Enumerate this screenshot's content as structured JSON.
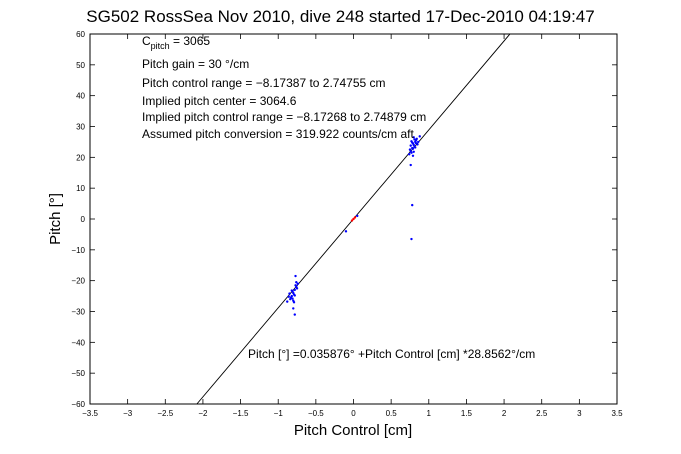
{
  "chart_data": {
    "type": "scatter",
    "title": "SG502 RossSea Nov 2010, dive 248 started 17-Dec-2010 04:19:47",
    "xlabel": "Pitch Control [cm]",
    "ylabel": "Pitch [°]",
    "xlim": [
      -3.5,
      3.5
    ],
    "ylim": [
      -60,
      60
    ],
    "xticks": [
      -3.5,
      -3,
      -2.5,
      -2,
      -1.5,
      -1,
      -0.5,
      0,
      0.5,
      1,
      1.5,
      2,
      2.5,
      3,
      3.5
    ],
    "yticks": [
      -60,
      -50,
      -40,
      -30,
      -20,
      -10,
      0,
      10,
      20,
      30,
      40,
      50,
      60
    ],
    "grid": false,
    "annotations": {
      "c_pitch_main": "C",
      "c_pitch_sub": "pitch",
      "c_pitch_value": " = 3065",
      "gain": "Pitch gain = 30 °/cm",
      "control_range": "Pitch control range = −8.17387 to 2.74755 cm",
      "implied_center": "Implied pitch center = 3064.6",
      "implied_range": "Implied pitch control range = −8.17268 to 2.74879 cm",
      "conversion": "Assumed pitch conversion = 319.922 counts/cm aft",
      "fit": "Pitch [°] =0.035876° +Pitch Control [cm] *28.8562°/cm"
    },
    "fit_line": {
      "intercept": 0.035876,
      "slope": 28.8562,
      "color": "#000000"
    },
    "series": [
      {
        "color": "#0000ff",
        "points": [
          [
            0.8,
            24.0
          ],
          [
            0.78,
            23.0
          ],
          [
            0.82,
            25.0
          ],
          [
            0.76,
            22.0
          ],
          [
            0.84,
            26.0
          ],
          [
            0.79,
            24.5
          ],
          [
            0.81,
            23.5
          ],
          [
            0.77,
            21.5
          ],
          [
            0.83,
            25.5
          ],
          [
            0.75,
            22.5
          ],
          [
            0.8,
            26.5
          ],
          [
            0.86,
            25.0
          ],
          [
            0.78,
            24.8
          ],
          [
            0.82,
            23.2
          ],
          [
            0.79,
            22.8
          ],
          [
            0.85,
            24.2
          ],
          [
            0.76,
            23.8
          ],
          [
            0.81,
            25.8
          ],
          [
            0.74,
            21.0
          ],
          [
            0.88,
            26.8
          ],
          [
            0.8,
            21.8
          ],
          [
            0.83,
            24.6
          ],
          [
            0.77,
            25.2
          ],
          [
            0.79,
            20.5
          ],
          [
            0.76,
            17.5
          ],
          [
            0.78,
            4.5
          ],
          [
            0.77,
            -6.5
          ],
          [
            -0.8,
            -24.0
          ],
          [
            -0.78,
            -23.0
          ],
          [
            -0.82,
            -25.0
          ],
          [
            -0.76,
            -22.0
          ],
          [
            -0.84,
            -26.0
          ],
          [
            -0.79,
            -24.5
          ],
          [
            -0.81,
            -23.5
          ],
          [
            -0.77,
            -21.5
          ],
          [
            -0.83,
            -25.5
          ],
          [
            -0.75,
            -22.5
          ],
          [
            -0.8,
            -26.5
          ],
          [
            -0.86,
            -25.2
          ],
          [
            -0.78,
            -24.8
          ],
          [
            -0.82,
            -23.2
          ],
          [
            -0.79,
            -27.0
          ],
          [
            -0.85,
            -24.2
          ],
          [
            -0.76,
            -20.5
          ],
          [
            -0.81,
            -25.8
          ],
          [
            -0.74,
            -21.0
          ],
          [
            -0.88,
            -26.8
          ],
          [
            -0.77,
            -18.5
          ],
          [
            -0.8,
            -29.0
          ],
          [
            -0.78,
            -31.0
          ],
          [
            -0.1,
            -4.0
          ],
          [
            0.05,
            1.0
          ]
        ]
      },
      {
        "color": "#ff0000",
        "points": [
          [
            0.0,
            0.0
          ],
          [
            0.02,
            0.5
          ],
          [
            -0.02,
            -0.5
          ]
        ]
      }
    ]
  }
}
